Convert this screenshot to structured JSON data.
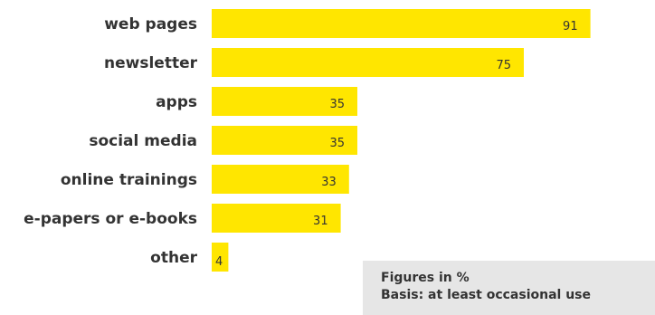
{
  "chart_data": {
    "type": "bar",
    "orientation": "horizontal",
    "categories": [
      "web pages",
      "newsletter",
      "apps",
      "social media",
      "online trainings",
      "e-papers or e-books",
      "other"
    ],
    "values": [
      91,
      75,
      35,
      35,
      33,
      31,
      4
    ],
    "xlim": [
      0,
      100
    ],
    "grid": false,
    "bar_color": "#ffe600"
  },
  "note": {
    "line1": "Figures in %",
    "line2": "Basis: at least occasional use"
  },
  "colors": {
    "bar": "#ffe600",
    "text": "#333333",
    "note_background": "#e6e6e6"
  }
}
